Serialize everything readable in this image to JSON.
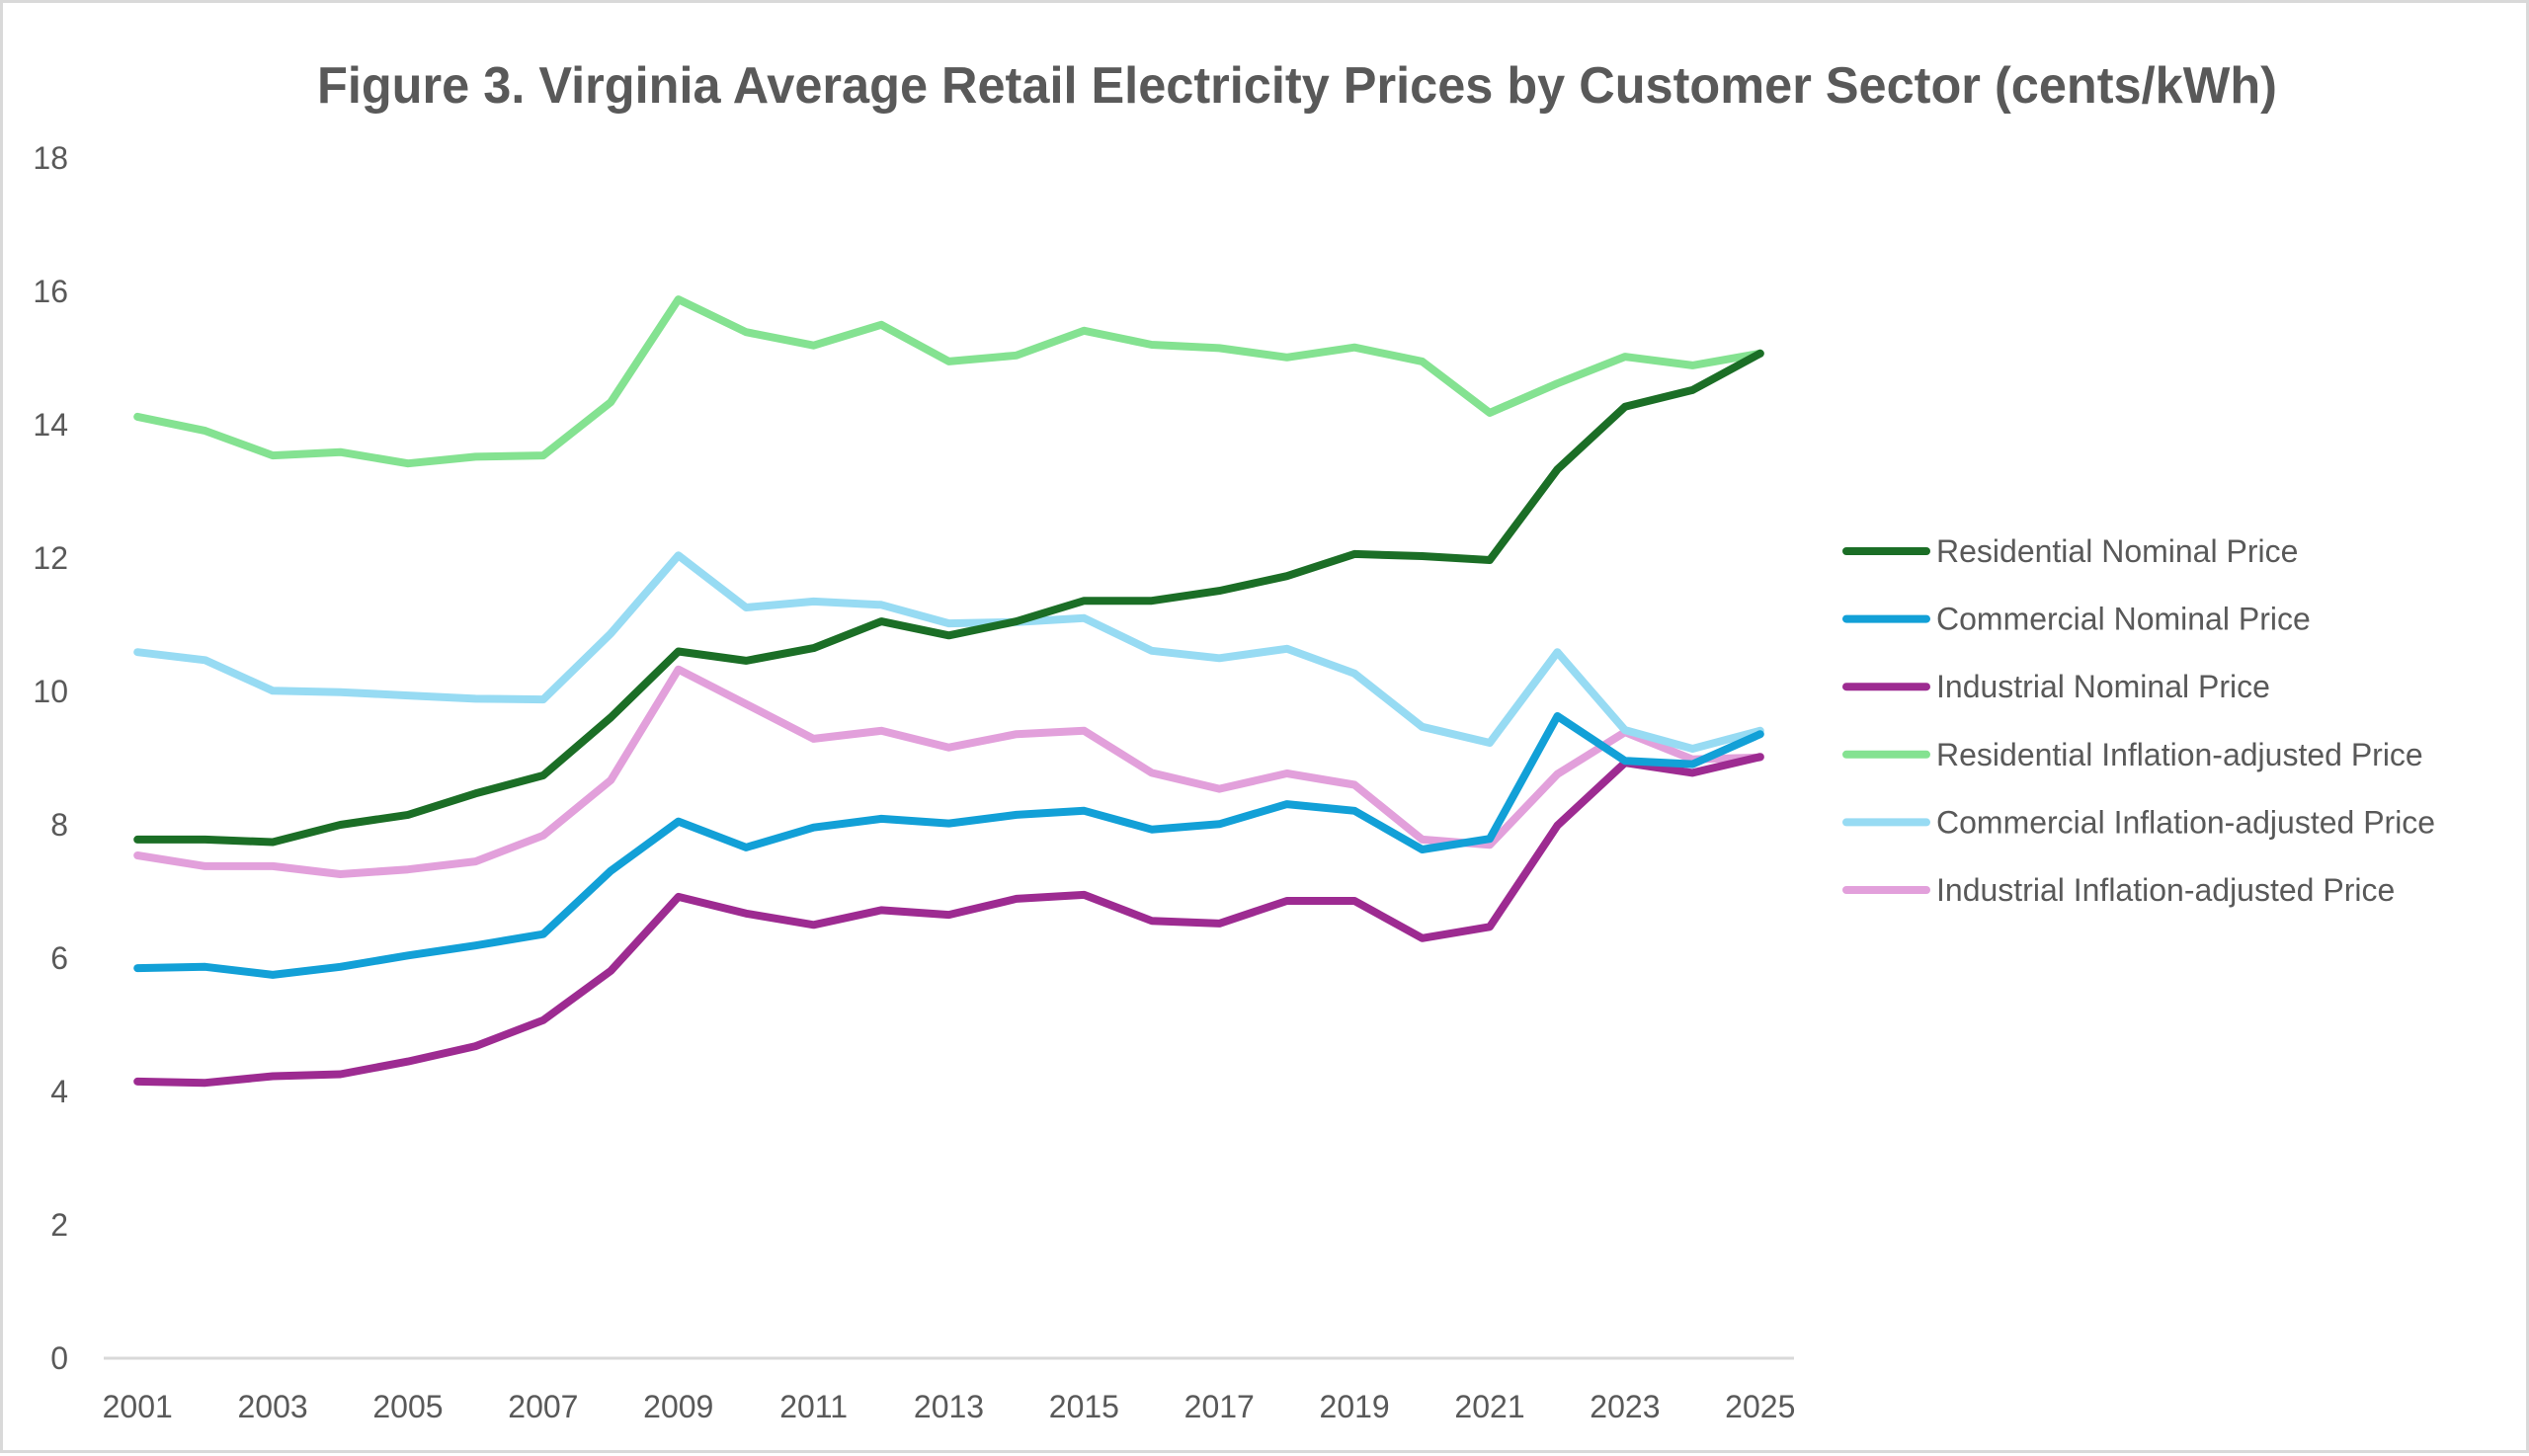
{
  "chart_data": {
    "type": "line",
    "title": "Figure 3. Virginia Average Retail Electricity Prices by Customer Sector (cents/kWh)",
    "xlabel": "",
    "ylabel": "",
    "ylim": [
      0,
      18
    ],
    "yticks": [
      0,
      2,
      4,
      6,
      8,
      10,
      12,
      14,
      16,
      18
    ],
    "x": [
      2001,
      2002,
      2003,
      2004,
      2005,
      2006,
      2007,
      2008,
      2009,
      2010,
      2011,
      2012,
      2013,
      2014,
      2015,
      2016,
      2017,
      2018,
      2019,
      2020,
      2021,
      2022,
      2023,
      2024,
      2025
    ],
    "xtick_labels": [
      "2001",
      "2003",
      "2005",
      "2007",
      "2009",
      "2011",
      "2013",
      "2015",
      "2017",
      "2019",
      "2021",
      "2023",
      "2025"
    ],
    "grid": false,
    "legend_position": "right",
    "series": [
      {
        "name": "Residential Nominal Price",
        "color": "#1b6e26",
        "values": [
          7.78,
          7.78,
          7.74,
          8.0,
          8.15,
          8.47,
          8.74,
          9.61,
          10.6,
          10.46,
          10.65,
          11.05,
          10.84,
          11.05,
          11.36,
          11.36,
          11.51,
          11.73,
          12.06,
          12.03,
          11.97,
          13.33,
          14.27,
          14.52,
          15.07
        ]
      },
      {
        "name": "Commercial Nominal Price",
        "color": "#12a0d7",
        "values": [
          5.85,
          5.87,
          5.75,
          5.87,
          6.04,
          6.19,
          6.36,
          7.31,
          8.05,
          7.66,
          7.96,
          8.09,
          8.02,
          8.15,
          8.21,
          7.93,
          8.01,
          8.31,
          8.21,
          7.63,
          7.79,
          9.63,
          8.96,
          8.91,
          9.36
        ]
      },
      {
        "name": "Industrial Nominal Price",
        "color": "#9d2b91",
        "values": [
          4.15,
          4.13,
          4.23,
          4.26,
          4.45,
          4.68,
          5.07,
          5.81,
          6.92,
          6.67,
          6.5,
          6.72,
          6.65,
          6.89,
          6.95,
          6.56,
          6.52,
          6.86,
          6.86,
          6.3,
          6.47,
          7.99,
          8.93,
          8.78,
          9.02
        ]
      },
      {
        "name": "Residential Inflation-adjusted Price",
        "color": "#84e291",
        "values": [
          14.12,
          13.91,
          13.54,
          13.59,
          13.42,
          13.52,
          13.54,
          14.34,
          15.88,
          15.39,
          15.19,
          15.5,
          14.95,
          15.04,
          15.41,
          15.2,
          15.15,
          15.01,
          15.16,
          14.95,
          14.18,
          14.62,
          15.02,
          14.89,
          15.07
        ]
      },
      {
        "name": "Commercial Inflation-adjusted Price",
        "color": "#97dbf3",
        "values": [
          10.59,
          10.47,
          10.01,
          9.99,
          9.94,
          9.89,
          9.88,
          10.87,
          12.04,
          11.26,
          11.35,
          11.3,
          11.02,
          11.04,
          11.1,
          10.61,
          10.5,
          10.64,
          10.27,
          9.47,
          9.23,
          10.59,
          9.42,
          9.14,
          9.41
        ]
      },
      {
        "name": "Industrial Inflation-adjusted Price",
        "color": "#e2a0db",
        "values": [
          7.54,
          7.38,
          7.38,
          7.26,
          7.33,
          7.45,
          7.84,
          8.67,
          10.33,
          9.81,
          9.29,
          9.41,
          9.16,
          9.36,
          9.41,
          8.78,
          8.54,
          8.77,
          8.6,
          7.78,
          7.7,
          8.76,
          9.39,
          8.98,
          9.01
        ]
      }
    ]
  }
}
